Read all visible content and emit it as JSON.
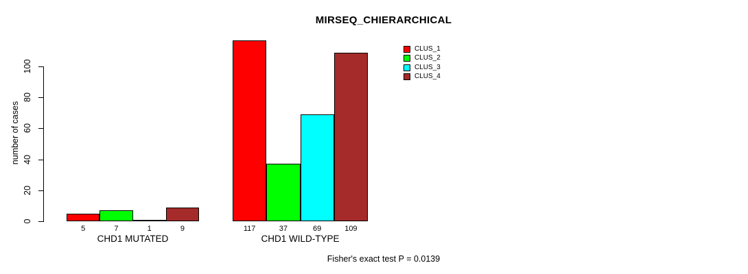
{
  "chart_data": {
    "type": "bar",
    "title": "MIRSEQ_CHIERARCHICAL",
    "ylabel": "number of cases",
    "xlabel": "",
    "categories": [
      "CHD1 MUTATED",
      "CHD1 WILD-TYPE"
    ],
    "series": [
      {
        "name": "CLUS_1",
        "color": "#ff0000",
        "values": [
          5,
          117
        ]
      },
      {
        "name": "CLUS_2",
        "color": "#00ff00",
        "values": [
          7,
          37
        ]
      },
      {
        "name": "CLUS_3",
        "color": "#00ffff",
        "values": [
          1,
          69
        ]
      },
      {
        "name": "CLUS_4",
        "color": "#a52a2a",
        "values": [
          9,
          109
        ]
      }
    ],
    "yticks": [
      0,
      20,
      40,
      60,
      80,
      100
    ],
    "ylim": [
      0,
      117
    ],
    "grid": false,
    "bar_value_labels": true,
    "legend_position": "top-right",
    "annotation": "Fisher's exact test P = 0.0139"
  },
  "colors": {
    "background": "#ffffff",
    "axis": "#000000",
    "text": "#000000"
  }
}
